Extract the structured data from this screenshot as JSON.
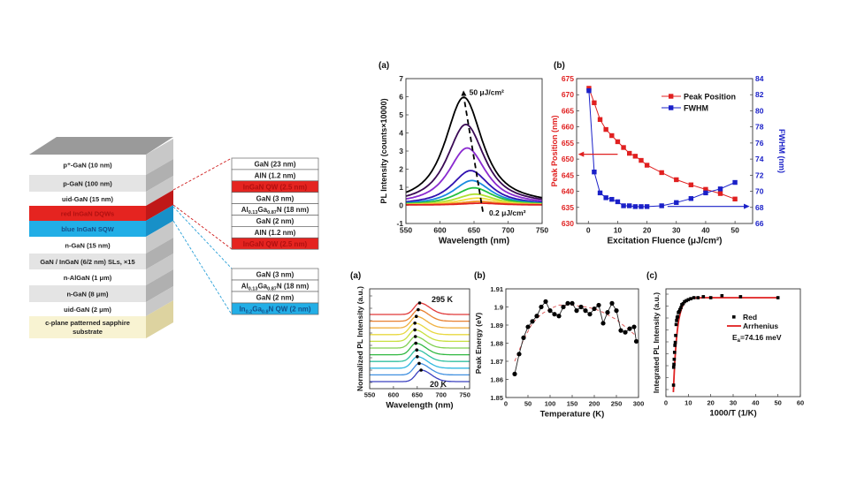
{
  "structure": {
    "layers": [
      {
        "label": "p⁺-GaN (10 nm)",
        "color": "#ffffff"
      },
      {
        "label": "p-GaN (100 nm)",
        "color": "#e4e4e4"
      },
      {
        "label": "uid-GaN (15 nm)",
        "color": "#ffffff"
      },
      {
        "label": "red InGaN DQWs",
        "color": "#e52420",
        "text_color": "#b01010"
      },
      {
        "label": "blue InGaN SQW",
        "color": "#22aee6",
        "text_color": "#14508a"
      },
      {
        "label": "n-GaN (15 nm)",
        "color": "#ffffff"
      },
      {
        "label": "GaN / InGaN (6/2 nm) SLs, ×15",
        "color": "#e4e4e4"
      },
      {
        "label": "n-AlGaN (1 μm)",
        "color": "#ffffff"
      },
      {
        "label": "n-GaN (8 μm)",
        "color": "#e4e4e4"
      },
      {
        "label": "uid-GaN (2 μm)",
        "color": "#ffffff"
      },
      {
        "label": "c-plane patterned sapphire",
        "label2": "substrate",
        "color": "#f8f3d2"
      }
    ],
    "red_stack": [
      {
        "parts": [
          {
            "t": "GaN (23 nm)"
          }
        ],
        "color": "#ffffff"
      },
      {
        "parts": [
          {
            "t": "AlN (1.2 nm)"
          }
        ],
        "color": "#ffffff"
      },
      {
        "parts": [
          {
            "t": "InGaN QW (2.5 nm)"
          }
        ],
        "color": "#e52420",
        "text_color": "#b01010"
      },
      {
        "parts": [
          {
            "t": "GaN (3 nm)"
          }
        ],
        "color": "#ffffff"
      },
      {
        "parts": [
          {
            "t": "Al"
          },
          {
            "t": "0.13",
            "sub": true
          },
          {
            "t": "Ga"
          },
          {
            "t": "0.87",
            "sub": true
          },
          {
            "t": "N (18 nm)"
          }
        ],
        "color": "#ffffff"
      },
      {
        "parts": [
          {
            "t": "GaN (2 nm)"
          }
        ],
        "color": "#ffffff"
      },
      {
        "parts": [
          {
            "t": "AlN (1.2 nm)"
          }
        ],
        "color": "#ffffff"
      },
      {
        "parts": [
          {
            "t": "InGaN QW (2.5 nm)"
          }
        ],
        "color": "#e52420",
        "text_color": "#b01010"
      }
    ],
    "blue_stack": [
      {
        "parts": [
          {
            "t": "GaN (3 nm)"
          }
        ],
        "color": "#ffffff"
      },
      {
        "parts": [
          {
            "t": "Al"
          },
          {
            "t": "0.13",
            "sub": true
          },
          {
            "t": "Ga"
          },
          {
            "t": "0.87",
            "sub": true
          },
          {
            "t": "N (18 nm)"
          }
        ],
        "color": "#ffffff"
      },
      {
        "parts": [
          {
            "t": "GaN (2 nm)"
          }
        ],
        "color": "#ffffff"
      },
      {
        "parts": [
          {
            "t": "In"
          },
          {
            "t": "0.2",
            "sub": true
          },
          {
            "t": "Ga"
          },
          {
            "t": "0.8",
            "sub": true
          },
          {
            "t": "N QW (2 nm)"
          }
        ],
        "color": "#22aee6",
        "text_color": "#14508a"
      }
    ]
  },
  "chart_data": [
    {
      "panel": "(a)",
      "type": "line",
      "xlabel": "Wavelength (nm)",
      "ylabel": "PL Intensity (counts×10000)",
      "xlim": [
        550,
        750
      ],
      "ylim": [
        -1,
        7
      ],
      "xticks": [
        550,
        600,
        650,
        700,
        750
      ],
      "yticks": [
        -1,
        0,
        1,
        2,
        3,
        4,
        5,
        6,
        7
      ],
      "annotations": [
        "50 μJ/cm²",
        "0.2 μJ/cm²"
      ],
      "series": [
        {
          "peak_nm": 635,
          "peak_value": 5.95,
          "color": "#000000"
        },
        {
          "peak_nm": 638,
          "peak_value": 4.45,
          "color": "#3a0a55"
        },
        {
          "peak_nm": 640,
          "peak_value": 3.15,
          "color": "#8a2ad0"
        },
        {
          "peak_nm": 645,
          "peak_value": 1.9,
          "color": "#3010b0"
        },
        {
          "peak_nm": 647,
          "peak_value": 1.35,
          "color": "#1a8ae0"
        },
        {
          "peak_nm": 650,
          "peak_value": 0.95,
          "color": "#22c040"
        },
        {
          "peak_nm": 652,
          "peak_value": 0.6,
          "color": "#b0e030"
        },
        {
          "peak_nm": 655,
          "peak_value": 0.38,
          "color": "#f0e040"
        },
        {
          "peak_nm": 657,
          "peak_value": 0.2,
          "color": "#f09020"
        },
        {
          "peak_nm": 660,
          "peak_value": 0.1,
          "color": "#e02020"
        }
      ]
    },
    {
      "panel": "(b)",
      "type": "line",
      "xlabel": "Excitation Fluence (μJ/cm²)",
      "ylabel": "Peak Position (nm)",
      "ylabel_right": "FWHM (nm)",
      "xlim": [
        -4,
        56
      ],
      "ylim": [
        630,
        675
      ],
      "ylim_right": [
        66,
        84
      ],
      "xticks": [
        0,
        10,
        20,
        30,
        40,
        50
      ],
      "yticks": [
        630,
        635,
        640,
        645,
        650,
        655,
        660,
        665,
        670,
        675
      ],
      "yticks_right": [
        66,
        68,
        70,
        72,
        74,
        76,
        78,
        80,
        82,
        84
      ],
      "legend": "top-right",
      "x": [
        0.2,
        2,
        4,
        6,
        8,
        10,
        12,
        14,
        16,
        18,
        20,
        25,
        30,
        35,
        40,
        45,
        50
      ],
      "series": [
        {
          "name": "Peak Position",
          "axis": "left",
          "color": "#e02020",
          "values": [
            672,
            667.5,
            662.3,
            659.2,
            657.3,
            655.4,
            653.6,
            651.8,
            650.9,
            649.6,
            648.1,
            645.8,
            643.6,
            642,
            640.6,
            639.3,
            637.6
          ]
        },
        {
          "name": "FWHM",
          "axis": "right",
          "color": "#1a20c8",
          "values": [
            82.5,
            72.4,
            69.8,
            69.2,
            69,
            68.7,
            68.2,
            68.2,
            68.1,
            68.1,
            68.1,
            68.2,
            68.6,
            69.1,
            69.8,
            70.3,
            71.1
          ]
        }
      ]
    },
    {
      "panel": "(a)",
      "type": "line",
      "xlabel": "Wavelength (nm)",
      "ylabel": "Normalized PL Intensity (a.u.)",
      "xlim": [
        550,
        760
      ],
      "xticks": [
        550,
        600,
        650,
        700,
        750
      ],
      "annotations": [
        "295 K",
        "20 K"
      ],
      "series": [
        {
          "peak_nm": 647,
          "color": "#e03838"
        },
        {
          "peak_nm": 644,
          "color": "#e88030"
        },
        {
          "peak_nm": 640,
          "color": "#f0b040"
        },
        {
          "peak_nm": 637,
          "color": "#e8d840"
        },
        {
          "peak_nm": 637,
          "color": "#c8e040"
        },
        {
          "peak_nm": 638,
          "color": "#80d050"
        },
        {
          "peak_nm": 639,
          "color": "#30b840"
        },
        {
          "peak_nm": 641,
          "color": "#30c0a0"
        },
        {
          "peak_nm": 642,
          "color": "#30b8e0"
        },
        {
          "peak_nm": 646,
          "color": "#4090e0"
        },
        {
          "peak_nm": 650,
          "color": "#3a40c0"
        }
      ]
    },
    {
      "panel": "(b)",
      "type": "scatter",
      "xlabel": "Temperature (K)",
      "ylabel": "Peak Energy (eV)",
      "xlim": [
        0,
        300
      ],
      "ylim": [
        1.85,
        1.91
      ],
      "xticks": [
        0,
        50,
        100,
        150,
        200,
        250,
        300
      ],
      "yticks": [
        1.85,
        1.86,
        1.87,
        1.88,
        1.89,
        1.9,
        1.91
      ],
      "x": [
        20,
        30,
        40,
        50,
        60,
        70,
        80,
        90,
        100,
        110,
        120,
        130,
        140,
        150,
        160,
        170,
        180,
        190,
        200,
        210,
        220,
        230,
        240,
        250,
        260,
        270,
        280,
        290,
        295
      ],
      "values": [
        1.863,
        1.874,
        1.883,
        1.889,
        1.892,
        1.895,
        1.9,
        1.903,
        1.898,
        1.896,
        1.895,
        1.9,
        1.902,
        1.902,
        1.898,
        1.9,
        1.898,
        1.896,
        1.899,
        1.901,
        1.891,
        1.897,
        1.902,
        1.898,
        1.887,
        1.886,
        1.888,
        1.889,
        1.881
      ],
      "fit": {
        "x": [
          20,
          40,
          60,
          80,
          100,
          120,
          150,
          180,
          200,
          220,
          250,
          270,
          295
        ],
        "values": [
          1.87,
          1.882,
          1.891,
          1.896,
          1.899,
          1.901,
          1.901,
          1.9,
          1.899,
          1.897,
          1.893,
          1.889,
          1.884
        ],
        "color": "#e06060"
      }
    },
    {
      "panel": "(c)",
      "type": "scatter",
      "xlabel": "1000/T (1/K)",
      "ylabel": "Integrated PL Intensity (a.u.)",
      "xlim": [
        0,
        60
      ],
      "xticks": [
        0,
        10,
        20,
        30,
        40,
        50,
        60
      ],
      "legend": "right",
      "legend_entries": [
        "Red",
        "Arrhenius"
      ],
      "annotation": {
        "main": "E",
        "sub": "a",
        "rest": "=74.16 meV"
      },
      "x": [
        3.39,
        3.45,
        3.57,
        3.7,
        3.85,
        4,
        4.17,
        4.35,
        4.55,
        4.76,
        5,
        5.26,
        5.56,
        5.9,
        6.25,
        6.7,
        7.1,
        7.7,
        8.3,
        9.1,
        10,
        11.1,
        12.5,
        14.3,
        16.7,
        20,
        25,
        33.3,
        50
      ],
      "values": [
        0.12,
        0.3,
        0.33,
        0.38,
        0.45,
        0.52,
        0.55,
        0.62,
        0.73,
        0.77,
        0.8,
        0.81,
        0.85,
        0.86,
        0.88,
        0.9,
        0.93,
        0.94,
        0.96,
        0.97,
        0.98,
        0.99,
        1.0,
        1.0,
        1.01,
        1.0,
        1.02,
        1.01,
        1.0
      ],
      "fit_color": "#e02020"
    }
  ]
}
